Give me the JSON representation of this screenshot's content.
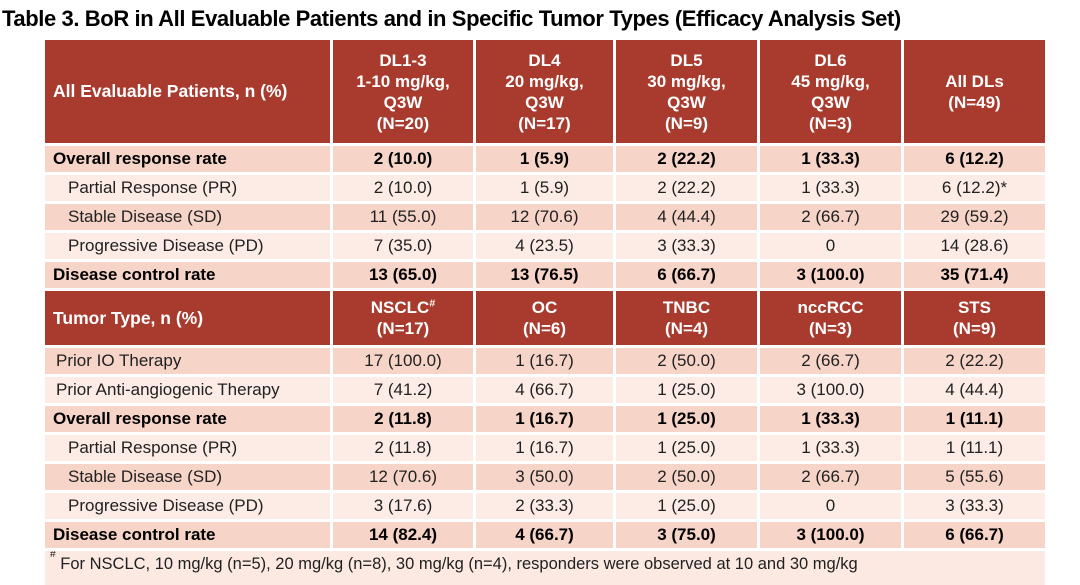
{
  "title": "Table 3. BoR in All Evaluable Patients and in Specific Tumor Types (Efficacy Analysis Set)",
  "colors": {
    "header_bg": "#A83B2E",
    "row_medium": "#F6D4C8",
    "row_light": "#FDECE6",
    "footnote_bg": "#FBE9E2",
    "text_dark": "#212121"
  },
  "table": {
    "sections": [
      {
        "header_label": "All Evaluable Patients, n (%)",
        "columns": [
          {
            "lines": [
              "DL1-3",
              "1-10 mg/kg,",
              "Q3W",
              "(N=20)"
            ],
            "sup": ""
          },
          {
            "lines": [
              "DL4",
              "20 mg/kg,",
              "Q3W",
              "(N=17)"
            ],
            "sup": ""
          },
          {
            "lines": [
              "DL5",
              "30 mg/kg,",
              "Q3W",
              "(N=9)"
            ],
            "sup": ""
          },
          {
            "lines": [
              "DL6",
              "45 mg/kg,",
              "Q3W",
              "(N=3)"
            ],
            "sup": ""
          },
          {
            "lines": [
              "All DLs",
              "(N=49)"
            ],
            "sup": ""
          }
        ],
        "rows": [
          {
            "label": "Overall response rate",
            "bold": true,
            "indent": "none",
            "shade": "medium",
            "values": [
              "2 (10.0)",
              "1 (5.9)",
              "2 (22.2)",
              "1 (33.3)",
              "6 (12.2)"
            ]
          },
          {
            "label": "Partial Response (PR)",
            "bold": false,
            "indent": "sub",
            "shade": "light",
            "values": [
              "2 (10.0)",
              "1 (5.9)",
              "2 (22.2)",
              "1 (33.3)",
              "6 (12.2)*"
            ]
          },
          {
            "label": "Stable Disease (SD)",
            "bold": false,
            "indent": "sub",
            "shade": "medium",
            "values": [
              "11 (55.0)",
              "12 (70.6)",
              "4 (44.4)",
              "2 (66.7)",
              "29 (59.2)"
            ]
          },
          {
            "label": "Progressive Disease (PD)",
            "bold": false,
            "indent": "sub",
            "shade": "light",
            "values": [
              "7 (35.0)",
              "4 (23.5)",
              "3 (33.3)",
              "0",
              "14 (28.6)"
            ]
          },
          {
            "label": "Disease control rate",
            "bold": true,
            "indent": "none",
            "shade": "medium",
            "values": [
              "13 (65.0)",
              "13 (76.5)",
              "6 (66.7)",
              "3 (100.0)",
              "35 (71.4)"
            ]
          }
        ]
      },
      {
        "header_label": "Tumor Type, n (%)",
        "columns": [
          {
            "lines": [
              "NSCLC",
              "(N=17)"
            ],
            "sup": "#"
          },
          {
            "lines": [
              "OC",
              "(N=6)"
            ],
            "sup": ""
          },
          {
            "lines": [
              "TNBC",
              "(N=4)"
            ],
            "sup": ""
          },
          {
            "lines": [
              "nccRCC",
              "(N=3)"
            ],
            "sup": ""
          },
          {
            "lines": [
              "STS",
              "(N=9)"
            ],
            "sup": ""
          }
        ],
        "rows": [
          {
            "label": "Prior IO Therapy",
            "bold": false,
            "indent": "small",
            "shade": "medium",
            "values": [
              "17 (100.0)",
              "1 (16.7)",
              "2 (50.0)",
              "2 (66.7)",
              "2 (22.2)"
            ]
          },
          {
            "label": "Prior Anti-angiogenic Therapy",
            "bold": false,
            "indent": "small",
            "shade": "light",
            "values": [
              "7 (41.2)",
              "4 (66.7)",
              "1 (25.0)",
              "3 (100.0)",
              "4 (44.4)"
            ]
          },
          {
            "label": "Overall response rate",
            "bold": true,
            "indent": "none",
            "shade": "medium",
            "values": [
              "2 (11.8)",
              "1 (16.7)",
              "1 (25.0)",
              "1 (33.3)",
              "1 (11.1)"
            ]
          },
          {
            "label": "Partial Response (PR)",
            "bold": false,
            "indent": "sub",
            "shade": "light",
            "values": [
              "2 (11.8)",
              "1 (16.7)",
              "1 (25.0)",
              "1 (33.3)",
              "1 (11.1)"
            ]
          },
          {
            "label": "Stable Disease (SD)",
            "bold": false,
            "indent": "sub",
            "shade": "medium",
            "values": [
              "12 (70.6)",
              "3 (50.0)",
              "2 (50.0)",
              "2 (66.7)",
              "5 (55.6)"
            ]
          },
          {
            "label": "Progressive Disease (PD)",
            "bold": false,
            "indent": "sub",
            "shade": "light",
            "values": [
              "3 (17.6)",
              "2 (33.3)",
              "1 (25.0)",
              "0",
              "3 (33.3)"
            ]
          },
          {
            "label": "Disease control rate",
            "bold": true,
            "indent": "none",
            "shade": "medium",
            "values": [
              "14 (82.4)",
              "4 (66.7)",
              "3 (75.0)",
              "3 (100.0)",
              "6 (66.7)"
            ]
          }
        ]
      }
    ],
    "footnote": {
      "sup": "#",
      "text": "For NSCLC, 10 mg/kg (n=5), 20 mg/kg (n=8), 30 mg/kg (n=4), responders were observed at 10 and 30 mg/kg"
    }
  }
}
